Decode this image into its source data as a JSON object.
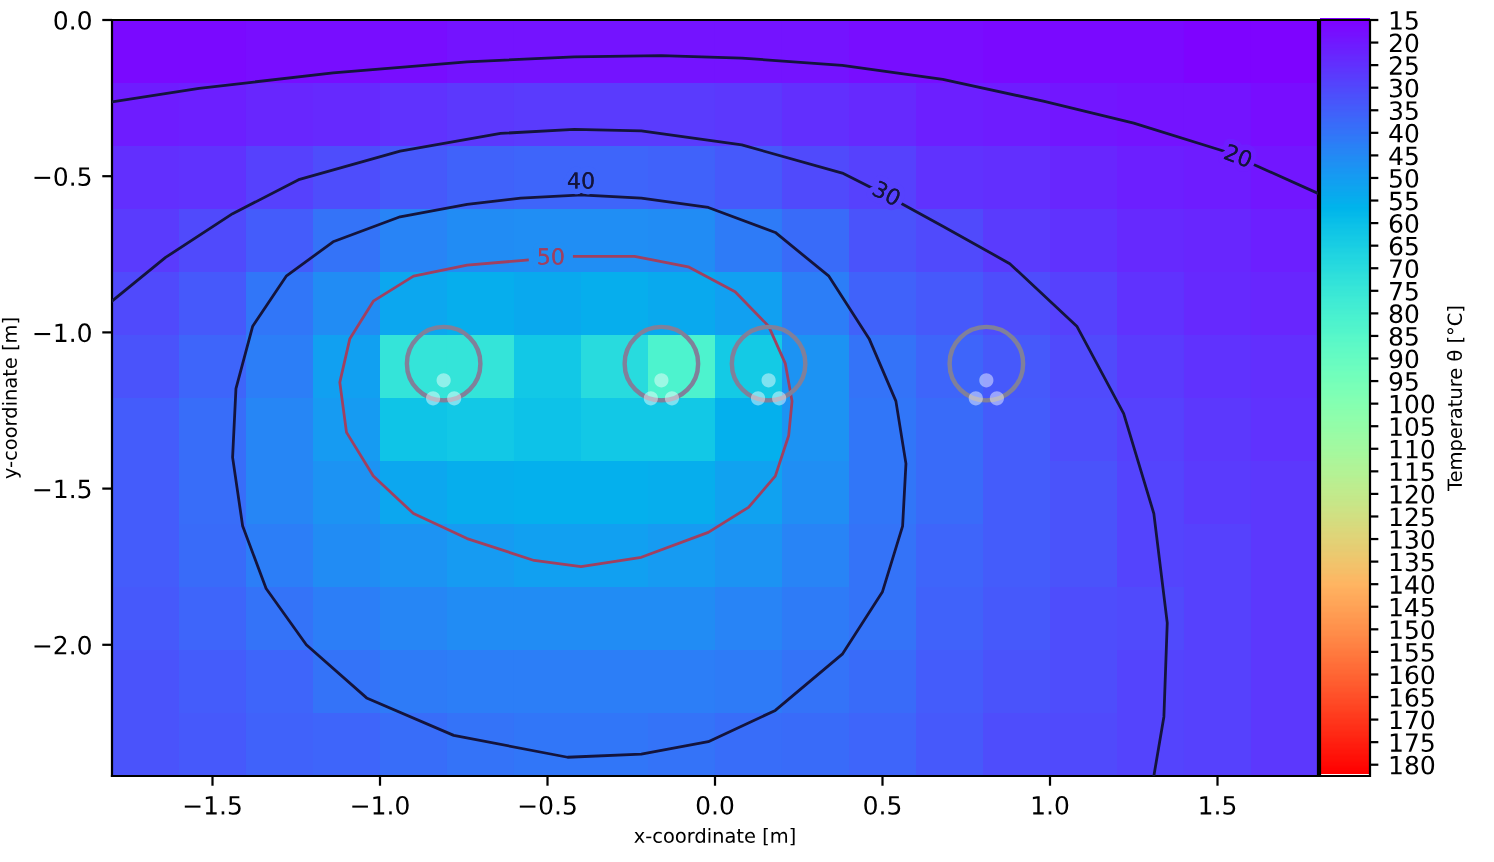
{
  "chart_data": {
    "type": "heatmap",
    "xlabel": "x-coordinate [m]",
    "ylabel": "y-coordinate [m]",
    "clabel": "Temperature θ [°C]",
    "xlim": [
      -1.8,
      1.8
    ],
    "ylim": [
      -2.42,
      0.0
    ],
    "xticks": [
      {
        "value": -1.5,
        "label": "−1.5"
      },
      {
        "value": -1.0,
        "label": "−1.0"
      },
      {
        "value": -0.5,
        "label": "−0.5"
      },
      {
        "value": 0.0,
        "label": "0.0"
      },
      {
        "value": 0.5,
        "label": "0.5"
      },
      {
        "value": 1.0,
        "label": "1.0"
      },
      {
        "value": 1.5,
        "label": "1.5"
      }
    ],
    "yticks": [
      {
        "value": 0.0,
        "label": "0.0"
      },
      {
        "value": -0.5,
        "label": "−0.5"
      },
      {
        "value": -1.0,
        "label": "−1.0"
      },
      {
        "value": -1.5,
        "label": "−1.5"
      },
      {
        "value": -2.0,
        "label": "−2.0"
      }
    ],
    "clim": [
      182.5,
      15
    ],
    "cticks": [
      15,
      20,
      25,
      30,
      35,
      40,
      45,
      50,
      55,
      60,
      65,
      70,
      75,
      80,
      85,
      90,
      95,
      100,
      105,
      110,
      115,
      120,
      125,
      130,
      135,
      140,
      145,
      150,
      155,
      160,
      165,
      170,
      175,
      180
    ],
    "cells": [
      [
        17,
        17,
        18,
        18,
        18,
        19,
        19,
        19,
        19,
        19,
        19,
        18,
        18,
        17,
        17,
        17,
        16,
        16
      ],
      [
        21,
        22,
        23,
        24,
        26,
        27,
        28,
        28,
        28,
        27,
        25,
        24,
        22,
        21,
        20,
        19,
        19,
        18
      ],
      [
        25,
        26,
        29,
        32,
        34,
        36,
        37,
        37,
        36,
        34,
        31,
        29,
        26,
        25,
        23,
        22,
        21,
        20
      ],
      [
        28,
        31,
        35,
        40,
        44,
        46,
        47,
        47,
        46,
        42,
        38,
        33,
        31,
        28,
        26,
        24,
        23,
        22
      ],
      [
        31,
        34,
        41,
        46,
        53,
        55,
        54,
        55,
        54,
        51,
        43,
        36,
        34,
        32,
        29,
        26,
        24,
        23
      ],
      [
        33,
        37,
        43,
        51,
        74,
        74,
        63,
        70,
        82,
        64,
        48,
        40,
        37,
        34,
        31,
        28,
        26,
        25
      ],
      [
        35,
        39,
        45,
        50,
        62,
        63,
        61,
        63,
        63,
        56,
        48,
        41,
        38,
        35,
        32,
        29,
        27,
        26
      ],
      [
        35,
        39,
        45,
        48,
        53,
        55,
        56,
        56,
        55,
        52,
        47,
        41,
        38,
        35,
        33,
        30,
        28,
        27
      ],
      [
        35,
        38,
        43,
        46,
        48,
        50,
        51,
        51,
        50,
        48,
        44,
        40,
        37,
        35,
        33,
        30,
        29,
        27
      ],
      [
        34,
        37,
        40,
        43,
        45,
        46,
        46,
        46,
        46,
        44,
        42,
        40,
        36,
        34,
        32,
        31,
        29,
        27
      ],
      [
        33,
        35,
        37,
        40,
        42,
        43,
        43,
        43,
        43,
        42,
        40,
        38,
        35,
        33,
        32,
        30,
        29,
        27
      ],
      [
        33,
        34,
        36,
        37,
        39,
        40,
        41,
        41,
        40,
        39,
        38,
        37,
        34,
        32,
        31,
        30,
        29,
        27
      ]
    ],
    "series": [
      {
        "type": "line",
        "color": "#14143c",
        "x": [
          -1.8,
          -1.54,
          -1.14,
          -0.74,
          -0.42,
          -0.16,
          0.08,
          0.38,
          0.68,
          0.98,
          1.25,
          1.52,
          1.8
        ],
        "values": [
          -0.262,
          -0.219,
          -0.169,
          -0.134,
          -0.118,
          -0.114,
          -0.122,
          -0.145,
          -0.19,
          -0.26,
          -0.33,
          -0.42,
          -0.555
        ]
      },
      {
        "type": "line",
        "color": "#14143c",
        "x": [
          -1.8,
          -1.64,
          -1.44,
          -1.24,
          -0.94,
          -0.64,
          -0.42,
          -0.22,
          0.08,
          0.38,
          0.51,
          0.68,
          0.88,
          1.08,
          1.22,
          1.31,
          1.35,
          1.34,
          1.31
        ],
        "values": [
          -0.9,
          -0.76,
          -0.62,
          -0.51,
          -0.42,
          -0.363,
          -0.35,
          -0.355,
          -0.4,
          -0.49,
          -0.56,
          -0.66,
          -0.78,
          -0.98,
          -1.26,
          -1.58,
          -1.93,
          -2.23,
          -2.42
        ]
      },
      {
        "type": "scatter",
        "color": "#80809a",
        "marker": "circle",
        "x": [
          -0.81,
          -0.16,
          0.16,
          0.81
        ],
        "values": [
          -1.1,
          -1.1,
          -1.1,
          -1.1
        ]
      }
    ],
    "annotations": [
      {
        "text": "20",
        "x": 1.56,
        "y": -0.44
      },
      {
        "text": "30",
        "x": 0.51,
        "y": -0.56
      },
      "40",
      "50"
    ]
  }
}
